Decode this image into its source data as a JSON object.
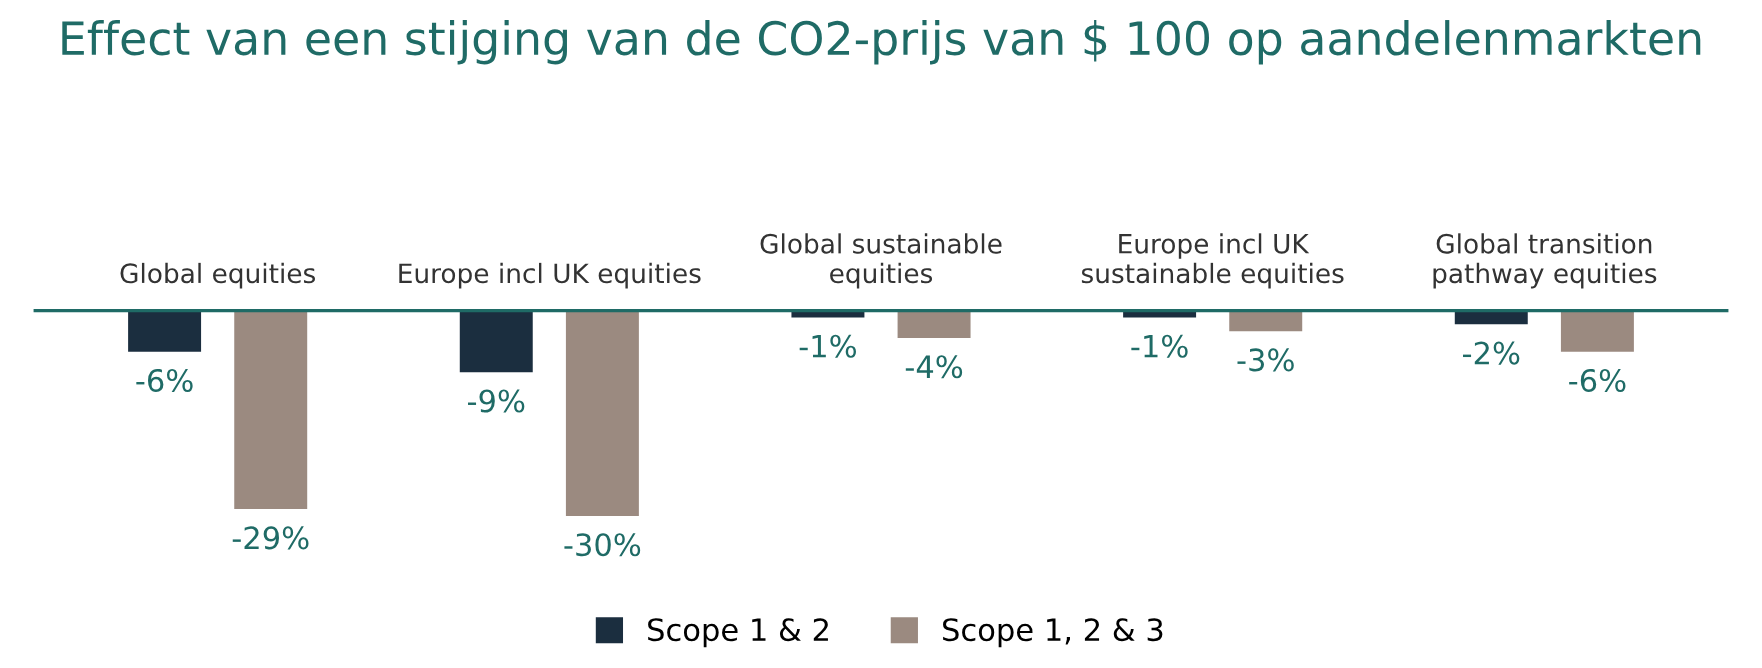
{
  "chart_data": {
    "type": "bar",
    "title": "Effect van een stijging van de CO2-prijs van $ 100 op aandelenmarkten",
    "categories": [
      "Global equities",
      "Europe incl UK equities",
      "Global sustainable\nequities",
      "Europe incl UK\nsustainable equities",
      "Global transition\npathway equities"
    ],
    "series": [
      {
        "name": "Scope 1 & 2",
        "color": "#1b2e3f",
        "values": [
          -6,
          -9,
          -1,
          -1,
          -2
        ],
        "value_labels": [
          "-6%",
          "-9%",
          "-1%",
          "-1%",
          "-2%"
        ]
      },
      {
        "name": "Scope 1, 2 & 3",
        "color": "#9b8a80",
        "values": [
          -29,
          -30,
          -4,
          -3,
          -6
        ],
        "value_labels": [
          "-29%",
          "-30%",
          "-4%",
          "-3%",
          "-6%"
        ]
      }
    ],
    "legend": "bottom",
    "grid": false
  }
}
